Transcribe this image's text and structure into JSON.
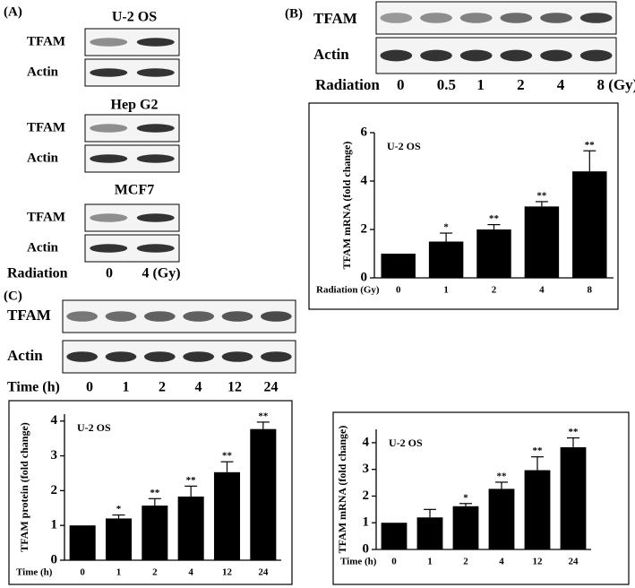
{
  "panel_a": {
    "label": "(A)",
    "blots": [
      {
        "cell_line": "U-2 OS",
        "rows": [
          "TFAM",
          "Actin"
        ]
      },
      {
        "cell_line": "Hep G2",
        "rows": [
          "TFAM",
          "Actin"
        ]
      },
      {
        "cell_line": "MCF7",
        "rows": [
          "TFAM",
          "Actin"
        ]
      }
    ],
    "condition_label": "Radiation",
    "lanes": [
      "0",
      "4 (Gy)"
    ]
  },
  "panel_b": {
    "label": "(B)",
    "rows": [
      "TFAM",
      "Actin"
    ],
    "condition_label": "Radiation",
    "lanes": [
      "0",
      "0.5",
      "1",
      "2",
      "4",
      "8 (Gy)"
    ]
  },
  "panel_c": {
    "label": "(C)",
    "rows": [
      "TFAM",
      "Actin"
    ],
    "condition_label": "Time (h)",
    "lanes": [
      "0",
      "1",
      "2",
      "4",
      "12",
      "24"
    ]
  },
  "chart_data": [
    {
      "type": "bar",
      "annotation": "U-2 OS",
      "y_label": "TFAM mRNA (fold change)",
      "x_label": "Radiation (Gy)",
      "categories": [
        "0",
        "1",
        "2",
        "4",
        "8"
      ],
      "values": [
        1,
        1.5,
        2,
        2.95,
        4.4
      ],
      "errors": [
        0,
        0.35,
        0.2,
        0.2,
        0.85
      ],
      "significance": [
        null,
        "*",
        "**",
        "**",
        "**"
      ],
      "color": "#000000",
      "ylim": [
        0,
        6
      ],
      "yticks": [
        0,
        2,
        4,
        6
      ]
    },
    {
      "type": "bar",
      "annotation": "U-2 OS",
      "y_label": "TFAM protein (fold change)",
      "x_label": "Time (h)",
      "categories": [
        "0",
        "1",
        "2",
        "4",
        "12",
        "24"
      ],
      "values": [
        1,
        1.2,
        1.57,
        1.83,
        2.53,
        3.77
      ],
      "errors": [
        0,
        0.1,
        0.2,
        0.3,
        0.3,
        0.2
      ],
      "significance": [
        null,
        "*",
        "**",
        "**",
        "**",
        "**"
      ],
      "color": "#000000",
      "ylim": [
        0,
        4.2
      ],
      "yticks": [
        0,
        1,
        2,
        3,
        4
      ]
    },
    {
      "type": "bar",
      "annotation": "U-2 OS",
      "y_label": "TFAM mRNA (fold change)",
      "x_label": "Time (h)",
      "categories": [
        "0",
        "1",
        "2",
        "4",
        "12",
        "24"
      ],
      "values": [
        1,
        1.2,
        1.62,
        2.27,
        2.97,
        3.83
      ],
      "errors": [
        0,
        0.3,
        0.1,
        0.25,
        0.5,
        0.35
      ],
      "significance": [
        null,
        null,
        "*",
        "**",
        "**",
        "**"
      ],
      "color": "#000000",
      "ylim": [
        0,
        4.5
      ],
      "yticks": [
        0,
        1,
        2,
        3,
        4
      ]
    }
  ]
}
